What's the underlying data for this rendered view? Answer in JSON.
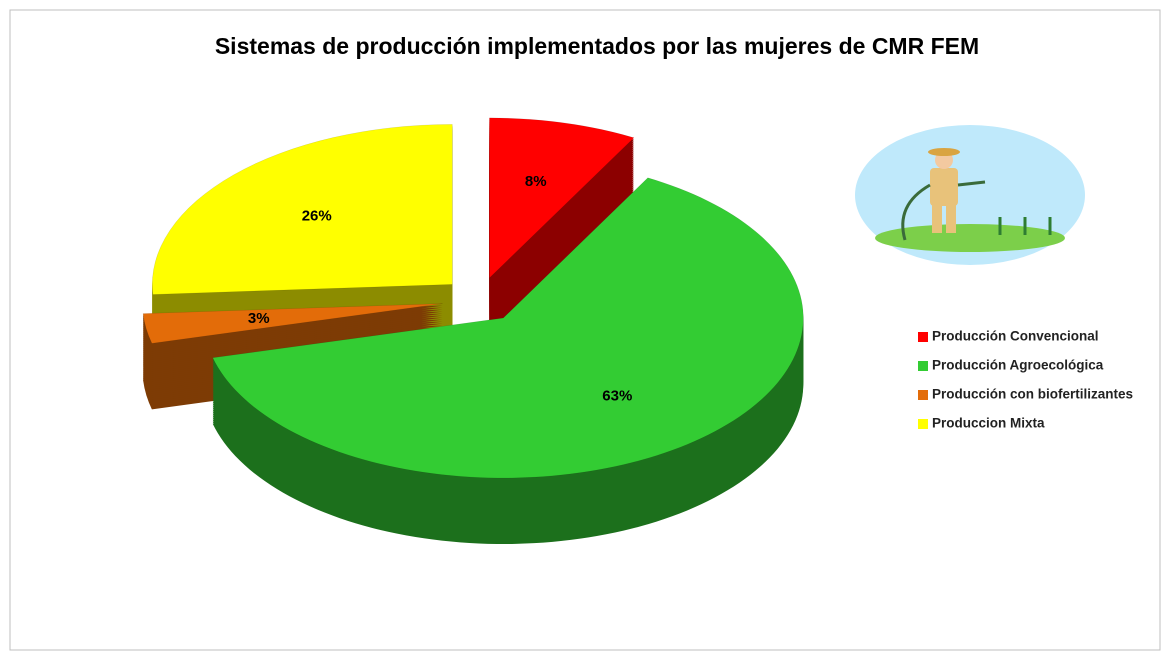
{
  "chart_data": {
    "type": "pie",
    "title": "Sistemas de producción implementados por las mujeres de CMR FEM",
    "categories": [
      "Producción Convencional",
      "Producción Agroecológica",
      "Producción con biofertilizantes",
      "Produccion Mixta"
    ],
    "values": [
      8,
      63,
      3,
      26
    ],
    "value_labels": [
      "8%",
      "63%",
      "3%",
      "26%"
    ],
    "colors": [
      "#ff0000",
      "#33cc33",
      "#e36c09",
      "#ffff00"
    ],
    "legend": "right"
  }
}
